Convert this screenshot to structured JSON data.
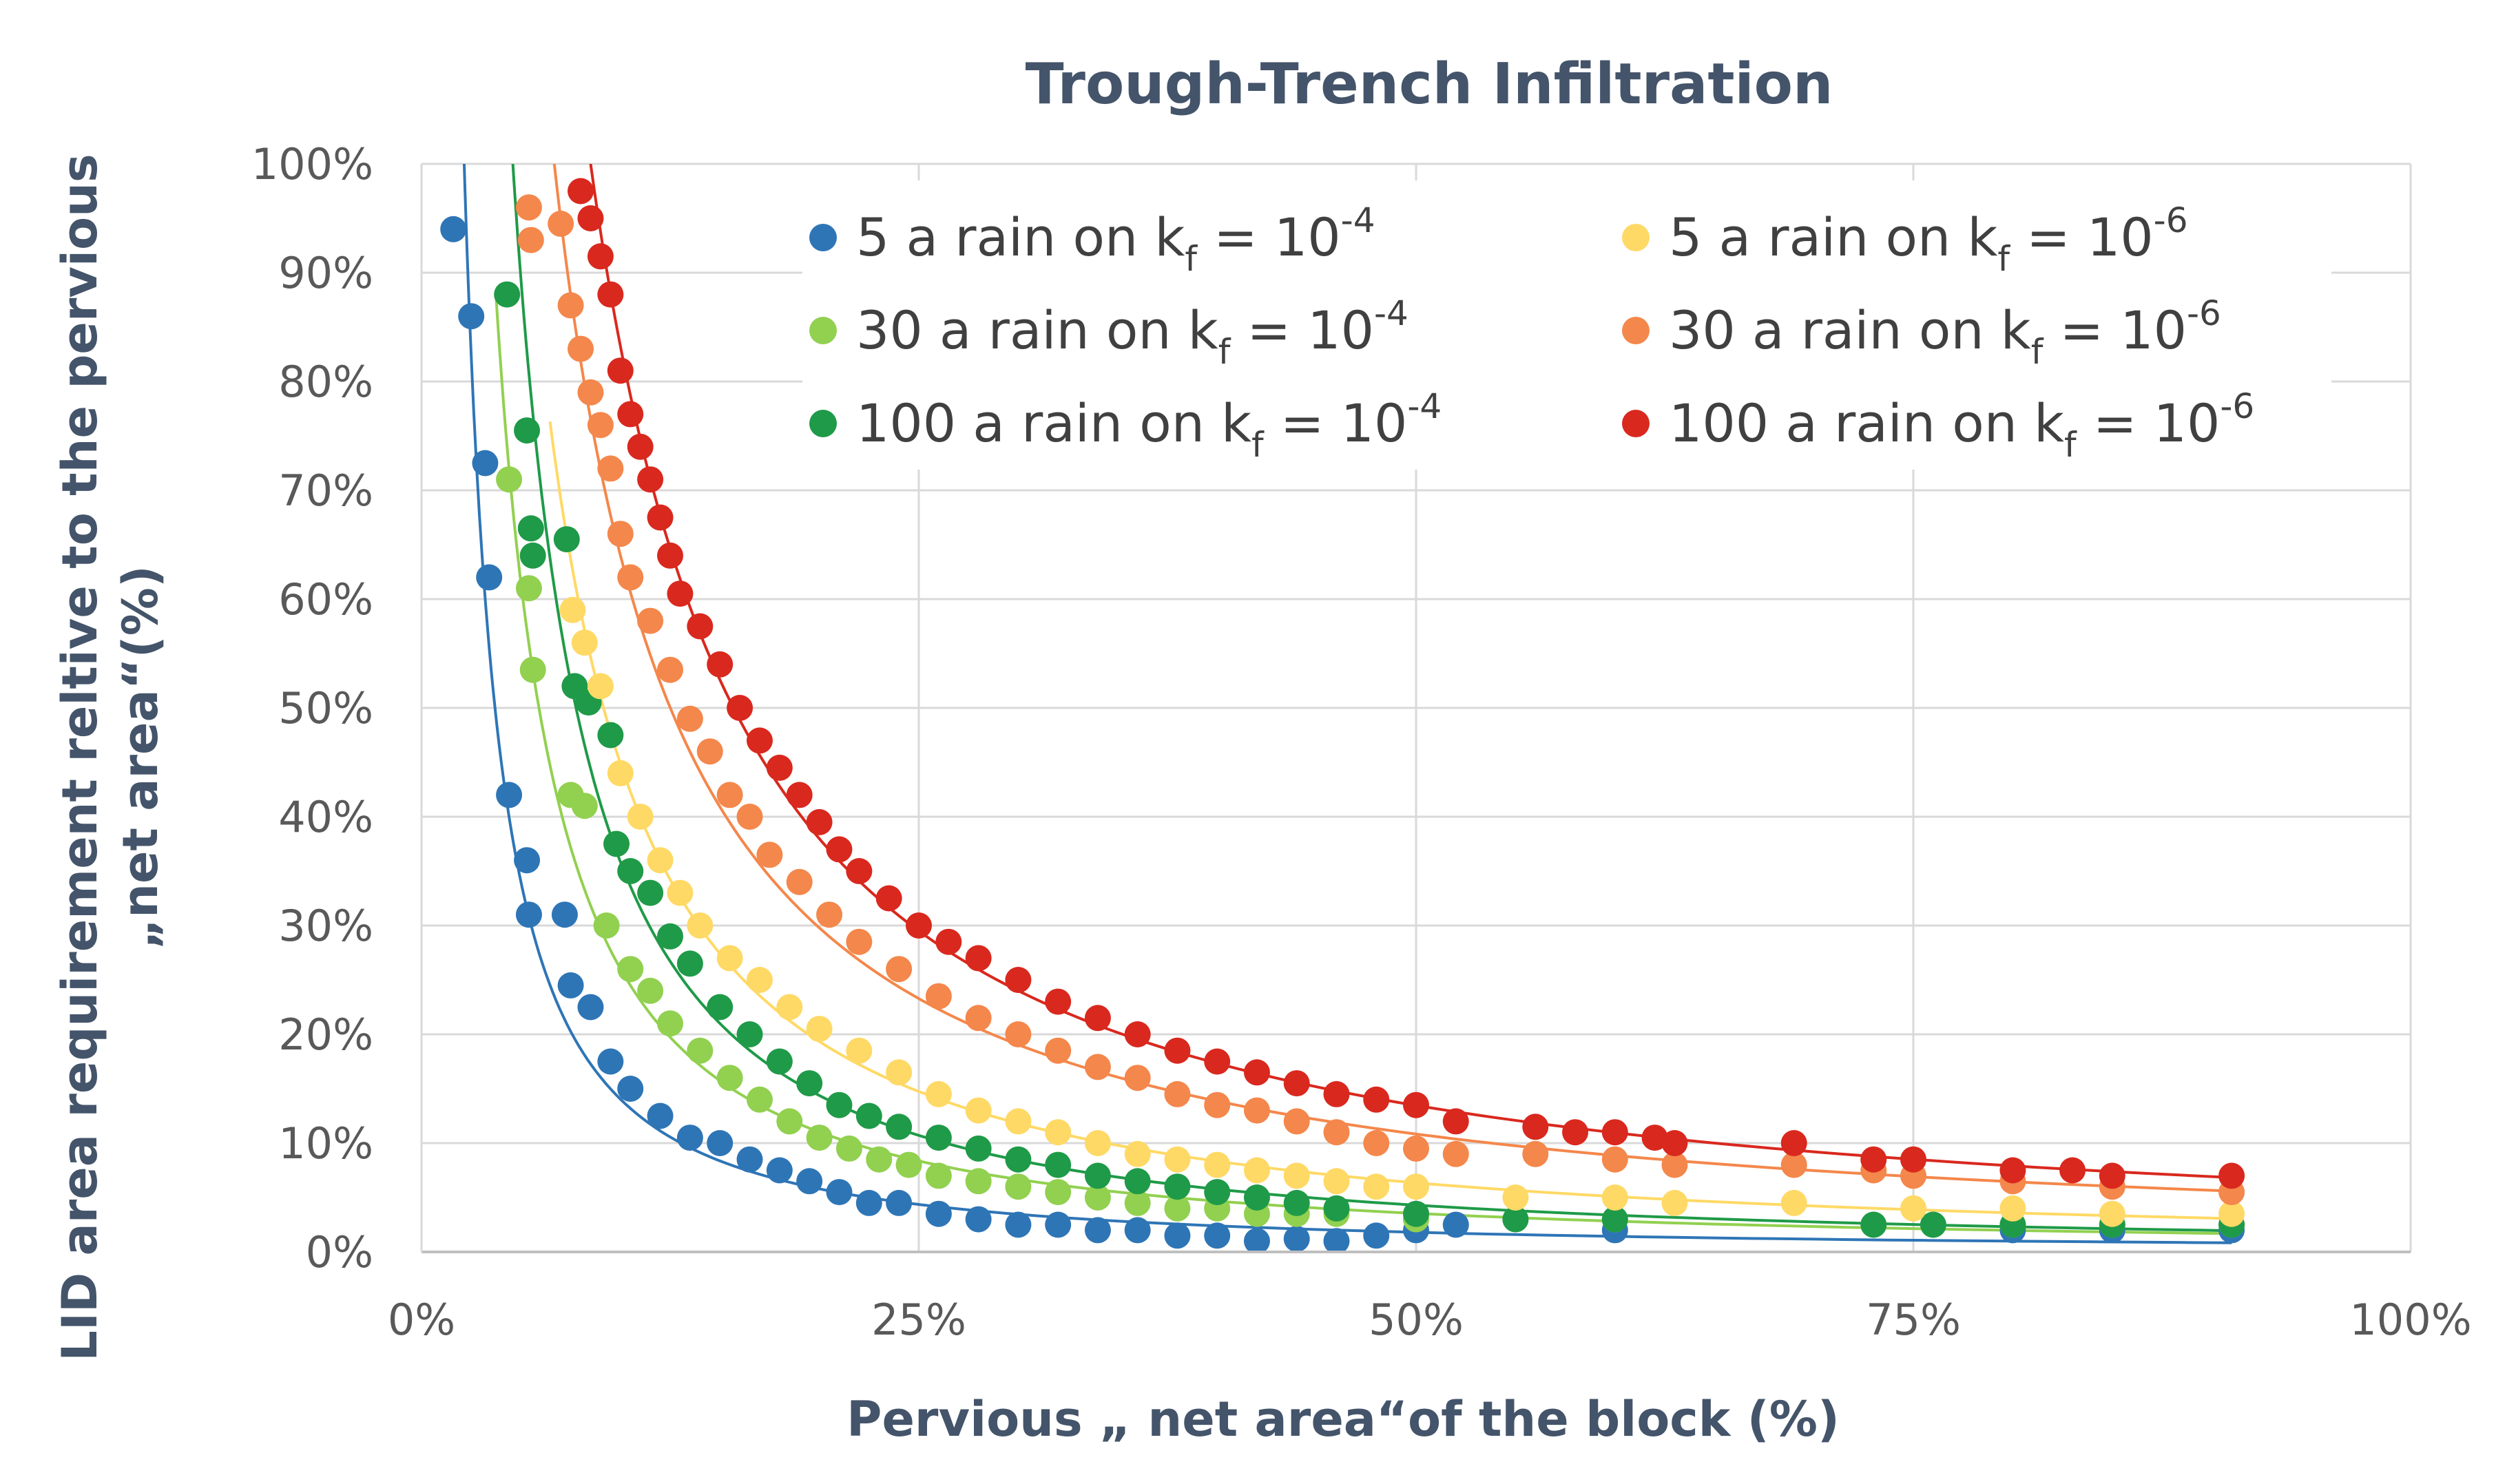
{
  "chart_data": {
    "type": "scatter",
    "title": "Trough-Trench Infiltration",
    "xlabel": "Pervious „ net area“of the block (%)",
    "ylabel_line1": "LID area requirement reltive to the pervious",
    "ylabel_line2": "„net area“(%)",
    "xlim": [
      0,
      100
    ],
    "ylim": [
      0,
      100
    ],
    "x_ticks": [
      "0%",
      "25%",
      "50%",
      "75%",
      "100%"
    ],
    "y_ticks": [
      "0%",
      "10%",
      "20%",
      "30%",
      "40%",
      "50%",
      "60%",
      "70%",
      "80%",
      "90%",
      "100%"
    ],
    "grid": true,
    "legend_position": "top-right",
    "trendlines": true,
    "series": [
      {
        "name": "5 a rain on  k",
        "name_sub": "f",
        "name_tail": " = 10",
        "name_sup": "-4",
        "color": "#2e75b6",
        "points": [
          [
            1.6,
            94
          ],
          [
            2.5,
            86
          ],
          [
            3.2,
            72.5
          ],
          [
            3.4,
            62
          ],
          [
            4.4,
            42
          ],
          [
            5.3,
            36
          ],
          [
            5.4,
            31
          ],
          [
            7.2,
            31
          ],
          [
            7.5,
            24.5
          ],
          [
            8.5,
            22.5
          ],
          [
            9.5,
            17.5
          ],
          [
            10.5,
            15
          ],
          [
            12,
            12.5
          ],
          [
            13.5,
            10.5
          ],
          [
            15,
            10
          ],
          [
            16.5,
            8.5
          ],
          [
            18,
            7.5
          ],
          [
            19.5,
            6.5
          ],
          [
            21,
            5.5
          ],
          [
            22.5,
            4.5
          ],
          [
            24,
            4.5
          ],
          [
            26,
            3.5
          ],
          [
            28,
            3
          ],
          [
            30,
            2.5
          ],
          [
            32,
            2.5
          ],
          [
            34,
            2
          ],
          [
            36,
            2
          ],
          [
            38,
            1.5
          ],
          [
            40,
            1.5
          ],
          [
            42,
            1
          ],
          [
            44,
            1.2
          ],
          [
            46,
            1
          ],
          [
            48,
            1.5
          ],
          [
            50,
            2
          ],
          [
            52,
            2.5
          ],
          [
            60,
            2
          ],
          [
            80,
            2
          ],
          [
            85,
            2
          ],
          [
            91,
            2
          ]
        ]
      },
      {
        "name": "30 a rain on  k",
        "name_sub": "f",
        "name_tail": " = 10",
        "name_sup": "-4",
        "color": "#92d050",
        "points": [
          [
            4.4,
            71
          ],
          [
            5.4,
            61
          ],
          [
            5.6,
            53.5
          ],
          [
            7.5,
            42
          ],
          [
            8.2,
            41
          ],
          [
            9.3,
            30
          ],
          [
            10.5,
            26
          ],
          [
            11.5,
            24
          ],
          [
            12.5,
            21
          ],
          [
            14,
            18.5
          ],
          [
            15.5,
            16
          ],
          [
            17,
            14
          ],
          [
            18.5,
            12
          ],
          [
            20,
            10.5
          ],
          [
            21.5,
            9.5
          ],
          [
            23,
            8.5
          ],
          [
            24.5,
            8
          ],
          [
            26,
            7
          ],
          [
            28,
            6.5
          ],
          [
            30,
            6
          ],
          [
            32,
            5.5
          ],
          [
            34,
            5
          ],
          [
            36,
            4.5
          ],
          [
            38,
            4
          ],
          [
            40,
            4
          ],
          [
            42,
            3.5
          ],
          [
            44,
            3.5
          ],
          [
            46,
            3.5
          ],
          [
            50,
            3
          ],
          [
            55,
            3
          ],
          [
            60,
            3
          ],
          [
            73,
            2.5
          ],
          [
            76,
            2.5
          ],
          [
            80,
            2.5
          ],
          [
            85,
            2.5
          ],
          [
            91,
            2.5
          ]
        ]
      },
      {
        "name": "100 a rain on  k",
        "name_sub": "f",
        "name_tail": " = 10",
        "name_sup": "-4",
        "color": "#1f9a48",
        "points": [
          [
            4.3,
            88
          ],
          [
            5.3,
            75.5
          ],
          [
            5.5,
            66.5
          ],
          [
            5.6,
            64
          ],
          [
            7.3,
            65.5
          ],
          [
            7.7,
            52
          ],
          [
            8.4,
            50.5
          ],
          [
            9.5,
            47.5
          ],
          [
            9.8,
            37.5
          ],
          [
            10.5,
            35
          ],
          [
            11.5,
            33
          ],
          [
            12.5,
            29
          ],
          [
            13.5,
            26.5
          ],
          [
            15,
            22.5
          ],
          [
            16.5,
            20
          ],
          [
            18,
            17.5
          ],
          [
            19.5,
            15.5
          ],
          [
            21,
            13.5
          ],
          [
            22.5,
            12.5
          ],
          [
            24,
            11.5
          ],
          [
            26,
            10.5
          ],
          [
            28,
            9.5
          ],
          [
            30,
            8.5
          ],
          [
            32,
            8
          ],
          [
            34,
            7
          ],
          [
            36,
            6.5
          ],
          [
            38,
            6
          ],
          [
            40,
            5.5
          ],
          [
            42,
            5
          ],
          [
            44,
            4.5
          ],
          [
            46,
            4
          ],
          [
            50,
            3.5
          ],
          [
            55,
            3
          ],
          [
            60,
            3
          ],
          [
            73,
            2.5
          ],
          [
            76,
            2.5
          ],
          [
            80,
            2.5
          ],
          [
            85,
            2.5
          ],
          [
            91,
            2.5
          ]
        ]
      },
      {
        "name": "5 a rain on  k",
        "name_sub": "f",
        "name_tail": " = 10",
        "name_sup": "-6",
        "color": "#ffd966",
        "points": [
          [
            7.6,
            59
          ],
          [
            8.2,
            56
          ],
          [
            9,
            52
          ],
          [
            10,
            44
          ],
          [
            11,
            40
          ],
          [
            12,
            36
          ],
          [
            13,
            33
          ],
          [
            14,
            30
          ],
          [
            15.5,
            27
          ],
          [
            17,
            25
          ],
          [
            18.5,
            22.5
          ],
          [
            20,
            20.5
          ],
          [
            22,
            18.5
          ],
          [
            24,
            16.5
          ],
          [
            26,
            14.5
          ],
          [
            28,
            13
          ],
          [
            30,
            12
          ],
          [
            32,
            11
          ],
          [
            34,
            10
          ],
          [
            36,
            9
          ],
          [
            38,
            8.5
          ],
          [
            40,
            8
          ],
          [
            42,
            7.5
          ],
          [
            44,
            7
          ],
          [
            46,
            6.5
          ],
          [
            48,
            6
          ],
          [
            50,
            6
          ],
          [
            55,
            5
          ],
          [
            60,
            5
          ],
          [
            63,
            4.5
          ],
          [
            69,
            4.5
          ],
          [
            75,
            4
          ],
          [
            80,
            4
          ],
          [
            85,
            3.5
          ],
          [
            91,
            3.5
          ]
        ]
      },
      {
        "name": "30 a rain on  k",
        "name_sub": "f",
        "name_tail": " = 10",
        "name_sup": "-6",
        "color": "#f4874b",
        "points": [
          [
            5.4,
            96
          ],
          [
            5.5,
            93
          ],
          [
            7,
            94.5
          ],
          [
            7.5,
            87
          ],
          [
            8,
            83
          ],
          [
            8.5,
            79
          ],
          [
            9,
            76
          ],
          [
            9.5,
            72
          ],
          [
            10,
            66
          ],
          [
            10.5,
            62
          ],
          [
            11.5,
            58
          ],
          [
            12.5,
            53.5
          ],
          [
            13.5,
            49
          ],
          [
            14.5,
            46
          ],
          [
            15.5,
            42
          ],
          [
            16.5,
            40
          ],
          [
            17.5,
            36.5
          ],
          [
            19,
            34
          ],
          [
            20.5,
            31
          ],
          [
            22,
            28.5
          ],
          [
            24,
            26
          ],
          [
            26,
            23.5
          ],
          [
            28,
            21.5
          ],
          [
            30,
            20
          ],
          [
            32,
            18.5
          ],
          [
            34,
            17
          ],
          [
            36,
            16
          ],
          [
            38,
            14.5
          ],
          [
            40,
            13.5
          ],
          [
            42,
            13
          ],
          [
            44,
            12
          ],
          [
            46,
            11
          ],
          [
            48,
            10
          ],
          [
            50,
            9.5
          ],
          [
            52,
            9
          ],
          [
            56,
            9
          ],
          [
            60,
            8.5
          ],
          [
            63,
            8
          ],
          [
            69,
            8
          ],
          [
            73,
            7.5
          ],
          [
            75,
            7
          ],
          [
            80,
            6.5
          ],
          [
            85,
            6
          ],
          [
            91,
            5.5
          ]
        ]
      },
      {
        "name": "100 a rain on  k",
        "name_sub": "f",
        "name_tail": " = 10",
        "name_sup": "-6",
        "color": "#d9281e",
        "points": [
          [
            8,
            97.5
          ],
          [
            8.5,
            95
          ],
          [
            9,
            91.5
          ],
          [
            9.5,
            88
          ],
          [
            10,
            81
          ],
          [
            10.5,
            77
          ],
          [
            11,
            74
          ],
          [
            11.5,
            71
          ],
          [
            12,
            67.5
          ],
          [
            12.5,
            64
          ],
          [
            13,
            60.5
          ],
          [
            14,
            57.5
          ],
          [
            15,
            54
          ],
          [
            16,
            50
          ],
          [
            17,
            47
          ],
          [
            18,
            44.5
          ],
          [
            19,
            42
          ],
          [
            20,
            39.5
          ],
          [
            21,
            37
          ],
          [
            22,
            35
          ],
          [
            23.5,
            32.5
          ],
          [
            25,
            30
          ],
          [
            26.5,
            28.5
          ],
          [
            28,
            27
          ],
          [
            30,
            25
          ],
          [
            32,
            23
          ],
          [
            34,
            21.5
          ],
          [
            36,
            20
          ],
          [
            38,
            18.5
          ],
          [
            40,
            17.5
          ],
          [
            42,
            16.5
          ],
          [
            44,
            15.5
          ],
          [
            46,
            14.5
          ],
          [
            48,
            14
          ],
          [
            50,
            13.5
          ],
          [
            52,
            12
          ],
          [
            56,
            11.5
          ],
          [
            58,
            11
          ],
          [
            60,
            11
          ],
          [
            62,
            10.5
          ],
          [
            63,
            10
          ],
          [
            69,
            10
          ],
          [
            73,
            8.5
          ],
          [
            75,
            8.5
          ],
          [
            80,
            7.5
          ],
          [
            83,
            7.5
          ],
          [
            85,
            7
          ],
          [
            91,
            7
          ]
        ]
      }
    ]
  }
}
